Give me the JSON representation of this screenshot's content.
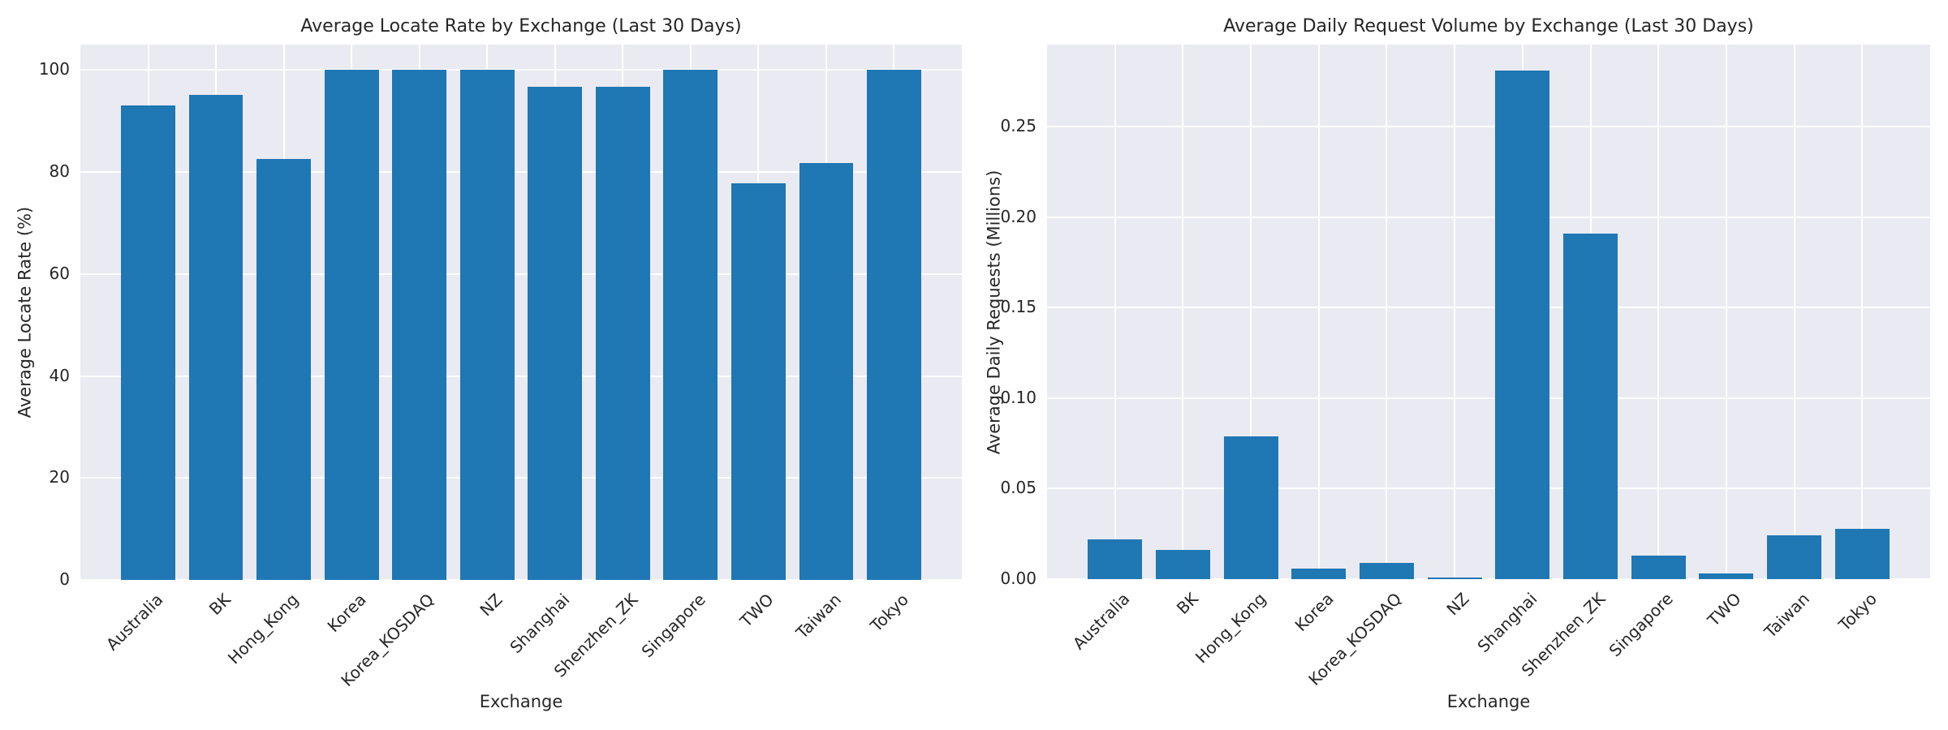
{
  "figure": {
    "background": "#ffffff",
    "plot_background": "#eaeaf2",
    "grid_color": "#ffffff",
    "bar_color": "#1f77b4",
    "text_color": "#262626"
  },
  "chart_data": [
    {
      "type": "bar",
      "title": "Average Locate Rate by Exchange (Last 30 Days)",
      "xlabel": "Exchange",
      "ylabel": "Average Locate Rate (%)",
      "categories": [
        "Australia",
        "BK",
        "Hong_Kong",
        "Korea",
        "Korea_KOSDAQ",
        "NZ",
        "Shanghai",
        "Shenzhen_ZK",
        "Singapore",
        "TWO",
        "Taiwan",
        "Tokyo"
      ],
      "values": [
        93.0,
        95.2,
        82.6,
        100.0,
        100.0,
        100.0,
        96.7,
        96.7,
        100.0,
        77.8,
        81.7,
        100.0
      ],
      "yticks": [
        0,
        20,
        40,
        60,
        80,
        100
      ],
      "ytick_labels": [
        "0",
        "20",
        "40",
        "60",
        "80",
        "100"
      ],
      "ylim": [
        0,
        105
      ],
      "grid": true,
      "legend": false,
      "bar_rotation_deg": 45
    },
    {
      "type": "bar",
      "title": "Average Daily Request Volume by Exchange (Last 30 Days)",
      "xlabel": "Exchange",
      "ylabel": "Average Daily Requests (Millions)",
      "categories": [
        "Australia",
        "BK",
        "Hong_Kong",
        "Korea",
        "Korea_KOSDAQ",
        "NZ",
        "Shanghai",
        "Shenzhen_ZK",
        "Singapore",
        "TWO",
        "Taiwan",
        "Tokyo"
      ],
      "values": [
        0.022,
        0.016,
        0.079,
        0.006,
        0.009,
        0.001,
        0.281,
        0.191,
        0.013,
        0.003,
        0.024,
        0.028
      ],
      "yticks": [
        0,
        0.05,
        0.1,
        0.15,
        0.2,
        0.25
      ],
      "ytick_labels": [
        "0.00",
        "0.05",
        "0.10",
        "0.15",
        "0.20",
        "0.25"
      ],
      "ylim": [
        0,
        0.2955
      ],
      "grid": true,
      "legend": false,
      "bar_rotation_deg": 45
    }
  ]
}
